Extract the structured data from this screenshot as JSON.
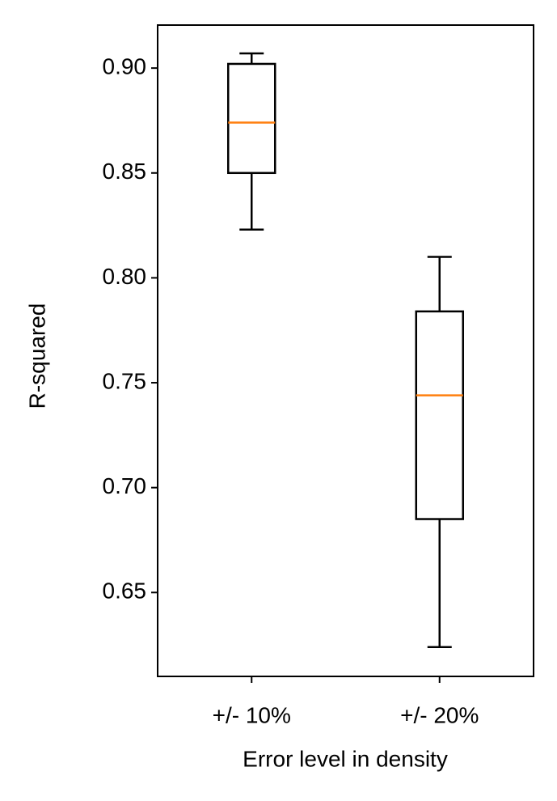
{
  "chart_data": {
    "type": "box",
    "xlabel": "Error level in density",
    "ylabel": "R-squared",
    "categories": [
      "+/- 10%",
      "+/- 20%"
    ],
    "boxes": [
      {
        "whisker_low": 0.823,
        "q1": 0.85,
        "median": 0.874,
        "q3": 0.902,
        "whisker_high": 0.907
      },
      {
        "whisker_low": 0.624,
        "q1": 0.685,
        "median": 0.744,
        "q3": 0.784,
        "whisker_high": 0.81
      }
    ],
    "color": "#000000",
    "median_color": "#ff7f0e",
    "ylim": [
      0.61,
      0.9205
    ],
    "yticks": [
      {
        "value": 0.65,
        "label": "0.65"
      },
      {
        "value": 0.7,
        "label": "0.70"
      },
      {
        "value": 0.75,
        "label": "0.75"
      },
      {
        "value": 0.8,
        "label": "0.80"
      },
      {
        "value": 0.85,
        "label": "0.85"
      },
      {
        "value": 0.9,
        "label": "0.90"
      }
    ],
    "grid": false
  }
}
